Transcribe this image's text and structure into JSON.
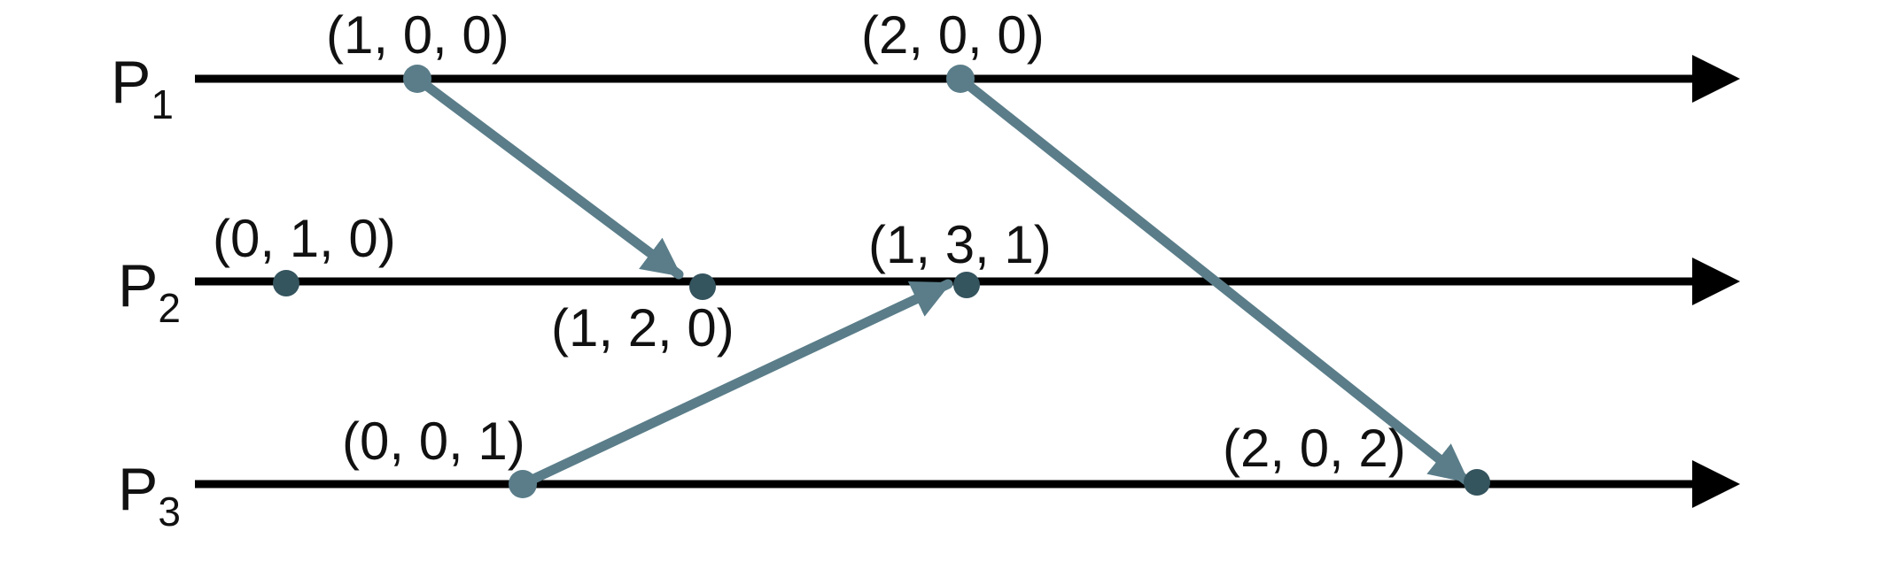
{
  "colors": {
    "timeline": "#000000",
    "message": "#5a7d89",
    "event_light": "#5a7d89",
    "event_dark": "#34545e"
  },
  "processes": [
    {
      "name": "P",
      "index": "1"
    },
    {
      "name": "P",
      "index": "2"
    },
    {
      "name": "P",
      "index": "3"
    }
  ],
  "events": [
    {
      "id": "p1-e1",
      "process": 1,
      "label": "(1, 0, 0)"
    },
    {
      "id": "p1-e2",
      "process": 1,
      "label": "(2, 0, 0)"
    },
    {
      "id": "p2-e1",
      "process": 2,
      "label": "(0, 1, 0)"
    },
    {
      "id": "p2-e2",
      "process": 2,
      "label": "(1, 2, 0)"
    },
    {
      "id": "p2-e3",
      "process": 2,
      "label": "(1, 3, 1)"
    },
    {
      "id": "p3-e1",
      "process": 3,
      "label": "(0, 0, 1)"
    },
    {
      "id": "p3-e2",
      "process": 3,
      "label": "(2, 0, 2)"
    }
  ],
  "messages": [
    {
      "from": "p1-e1",
      "to": "p2-e2"
    },
    {
      "from": "p3-e1",
      "to": "p2-e3"
    },
    {
      "from": "p1-e2",
      "to": "p3-e2"
    }
  ]
}
